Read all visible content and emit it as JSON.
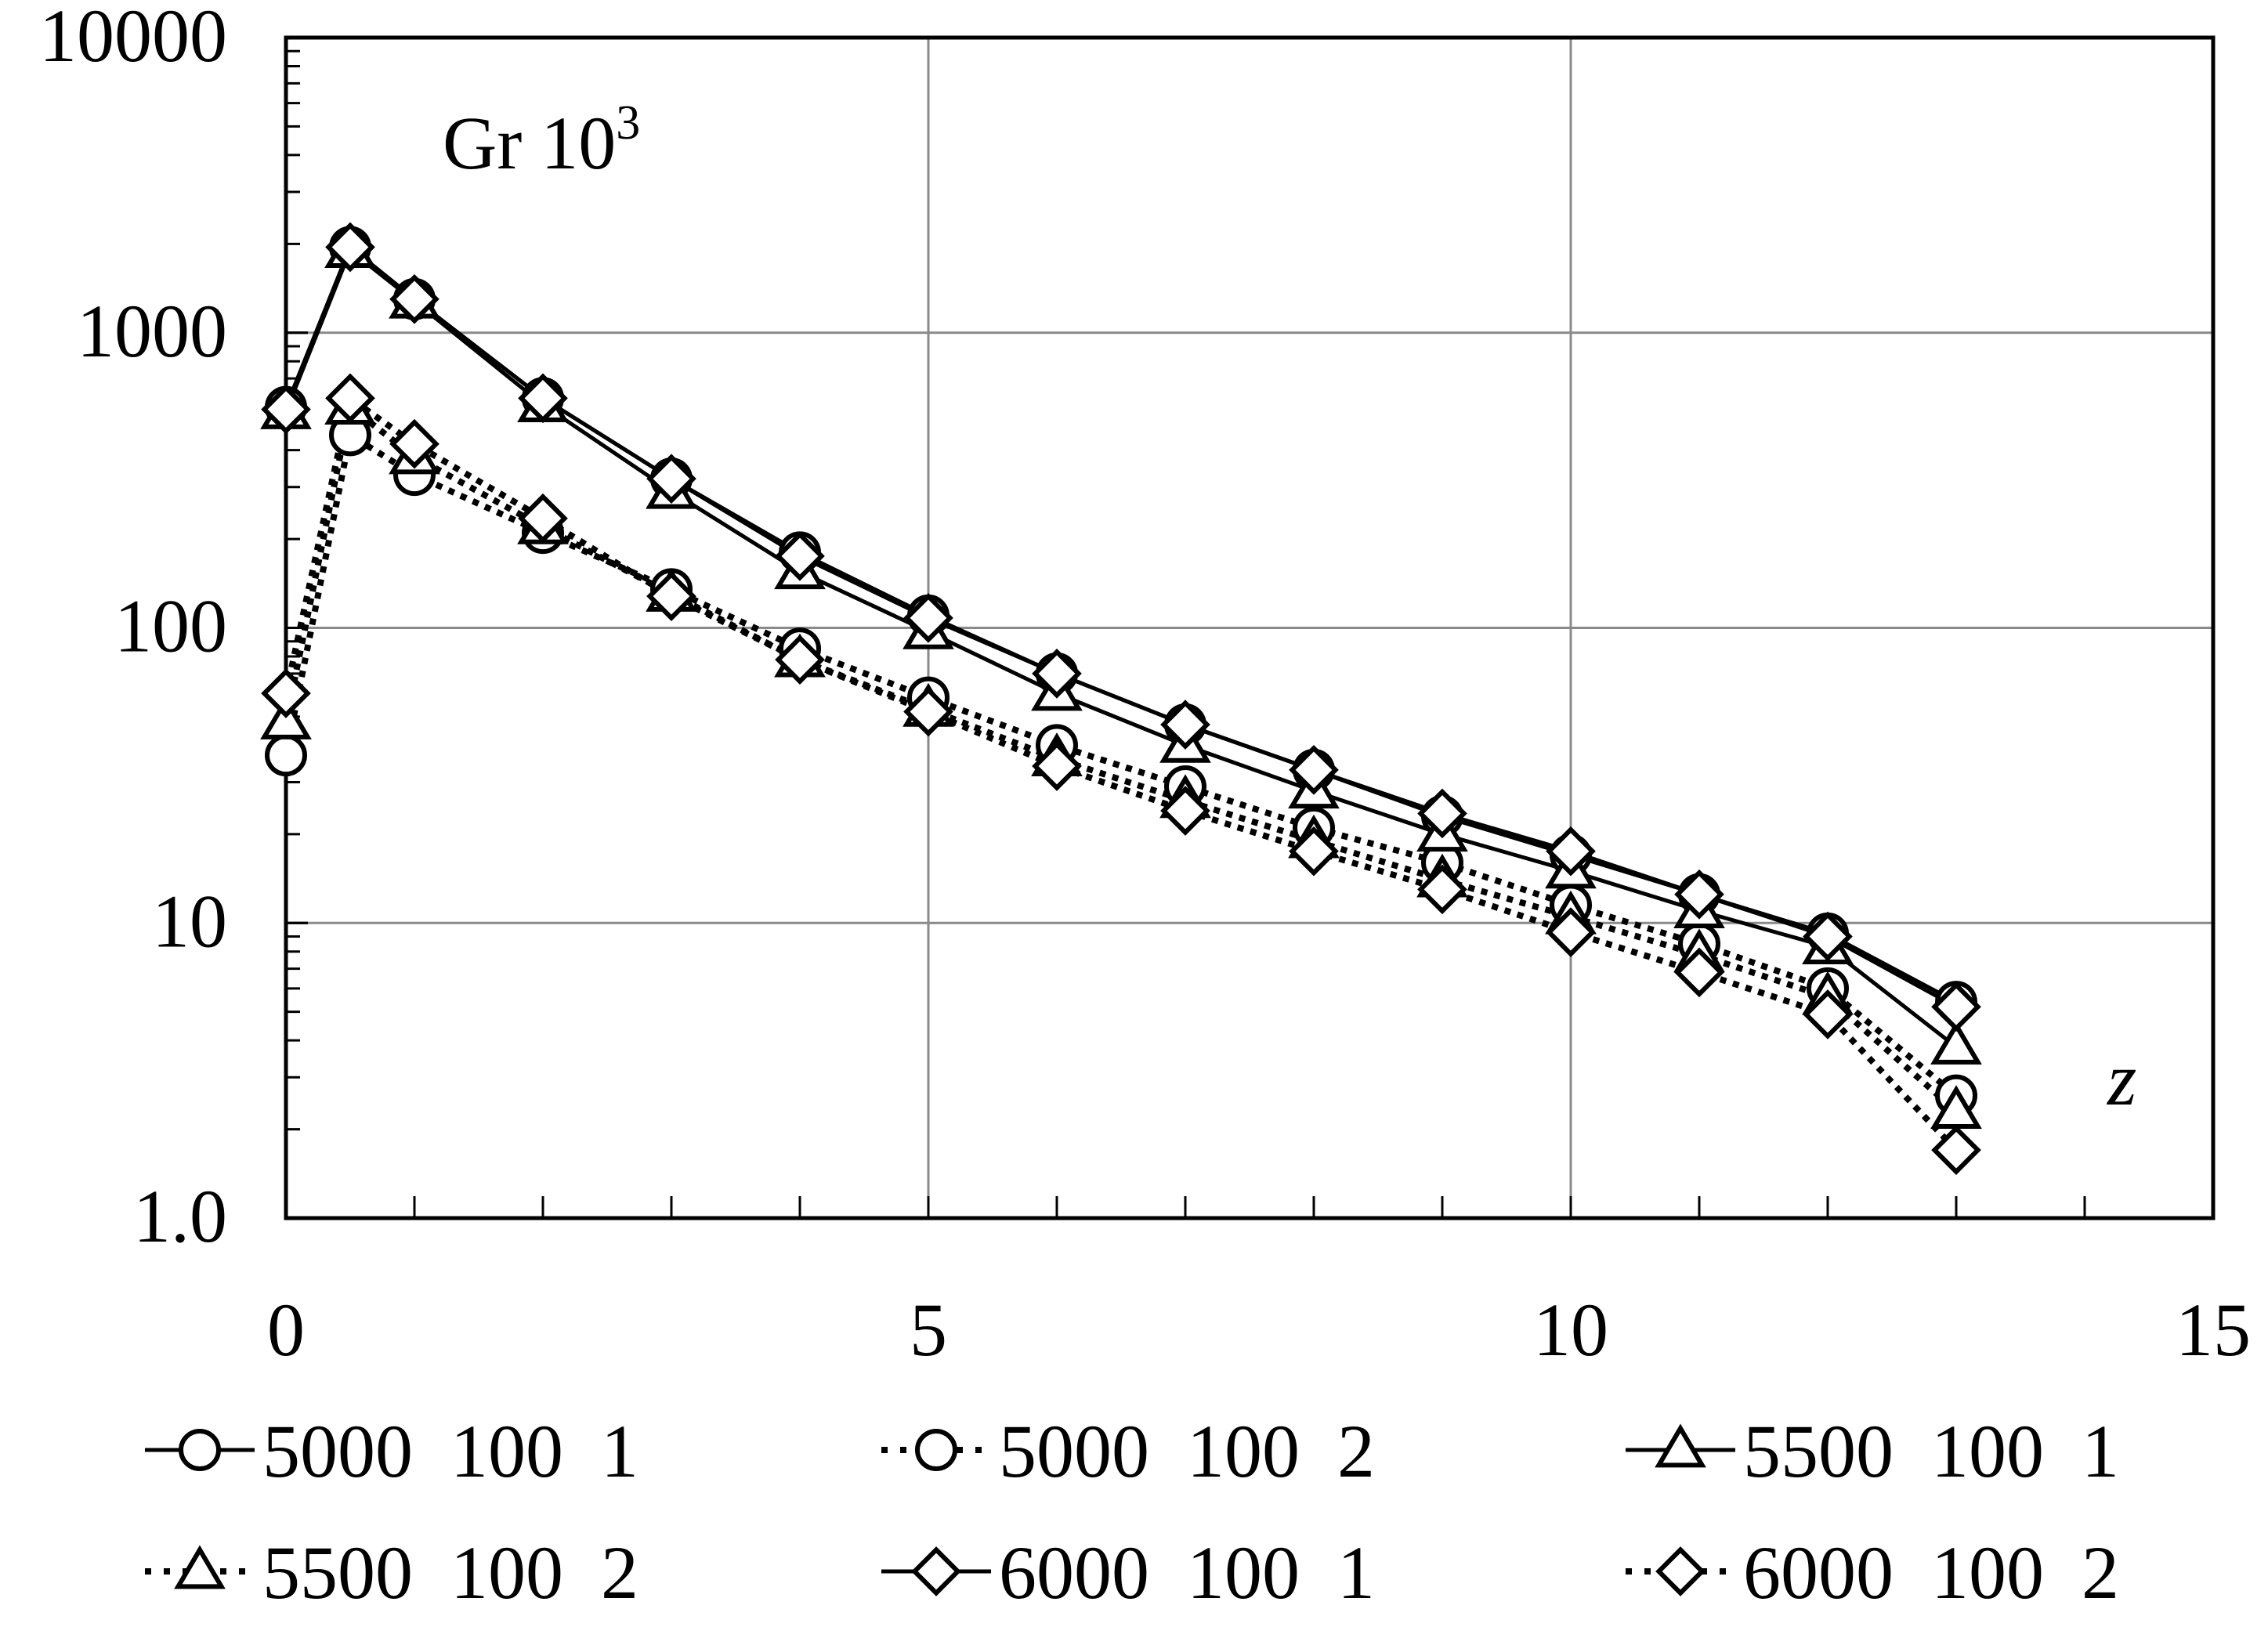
{
  "chart_data": {
    "type": "line",
    "title": "",
    "xlabel": "z",
    "ylabel": "Gr 10³",
    "ylabel_main": "Gr 10",
    "ylabel_exp": "3",
    "yscale": "log",
    "xlim": [
      0,
      15
    ],
    "ylim": [
      1,
      10000
    ],
    "grid": true,
    "legend_position": "bottom",
    "x_ticks": [
      "0",
      "5",
      "10",
      "15"
    ],
    "y_ticks": [
      "1.0",
      "10",
      "100",
      "1000",
      "10000"
    ],
    "x_tick_values": [
      0,
      5,
      10,
      15
    ],
    "y_tick_values": [
      1,
      10,
      100,
      1000,
      10000
    ],
    "x": [
      0,
      0.5,
      1,
      2,
      3,
      4,
      5,
      6,
      7,
      8,
      9,
      10,
      11,
      12,
      13
    ],
    "series": [
      {
        "name": "5000  100  1",
        "marker": "circle",
        "style": "solid",
        "values": [
          560,
          1950,
          1300,
          600,
          320,
          180,
          110,
          70,
          47,
          33,
          23,
          17,
          12.5,
          9.2,
          5.4
        ]
      },
      {
        "name": "5000  100  2",
        "marker": "circle",
        "style": "dotted",
        "values": [
          37,
          450,
          330,
          210,
          135,
          85,
          58,
          40,
          29,
          21,
          16,
          11.5,
          8.5,
          6.0,
          2.6
        ]
      },
      {
        "name": "5500  100  1",
        "marker": "triangle",
        "style": "solid",
        "values": [
          540,
          1900,
          1280,
          570,
          290,
          155,
          97,
          60,
          40,
          28,
          20,
          15,
          11,
          8.3,
          3.8
        ]
      },
      {
        "name": "5500  100  2",
        "marker": "triangle",
        "style": "dotted",
        "values": [
          48,
          560,
          380,
          220,
          130,
          78,
          53,
          36,
          26,
          19,
          14,
          10.5,
          7.8,
          5.6,
          2.3
        ]
      },
      {
        "name": "6000  100  1",
        "marker": "diamond",
        "style": "solid",
        "values": [
          550,
          1950,
          1300,
          600,
          320,
          175,
          108,
          70,
          47,
          33,
          23.5,
          17.5,
          12.5,
          9.0,
          5.2
        ]
      },
      {
        "name": "6000  100  2",
        "marker": "diamond",
        "style": "dotted",
        "values": [
          60,
          600,
          420,
          235,
          128,
          78,
          52,
          34,
          24,
          17.5,
          13,
          9.3,
          6.8,
          4.9,
          1.7
        ]
      }
    ]
  }
}
